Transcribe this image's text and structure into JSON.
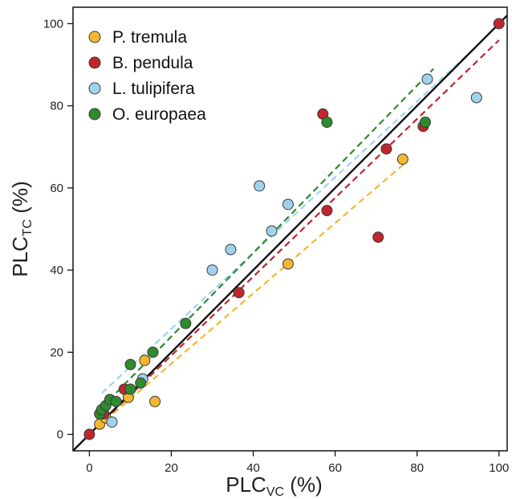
{
  "chart_data": {
    "type": "scatter",
    "title": "",
    "xlabel": {
      "main": "PLC",
      "sub": "VC",
      "unit": " (%)"
    },
    "ylabel": {
      "main": "PLC",
      "sub": "TC",
      "unit": " (%)"
    },
    "xlim": [
      -4,
      102
    ],
    "ylim": [
      -4,
      104
    ],
    "xticks": [
      0,
      20,
      40,
      60,
      80,
      100
    ],
    "yticks": [
      0,
      20,
      40,
      60,
      80,
      100
    ],
    "grid": false,
    "legend": "top-left",
    "identity_line": {
      "from": [
        -4,
        -4
      ],
      "to": [
        102,
        102
      ],
      "color": "#111111"
    },
    "series": [
      {
        "name": "P. tremula",
        "color": "#f5b731",
        "points": [
          [
            2.5,
            2.5
          ],
          [
            4,
            4
          ],
          [
            9.5,
            9
          ],
          [
            13.5,
            18
          ],
          [
            16,
            8
          ],
          [
            48.5,
            41.5
          ],
          [
            76.5,
            67
          ]
        ],
        "fit": {
          "from": [
            2,
            1.8
          ],
          "to": [
            77,
            66
          ]
        }
      },
      {
        "name": "B. pendula",
        "color": "#c0262d",
        "points": [
          [
            0,
            0
          ],
          [
            3.5,
            5
          ],
          [
            8.5,
            11
          ],
          [
            36.5,
            34.5
          ],
          [
            57,
            78
          ],
          [
            58,
            54.5
          ],
          [
            70.5,
            48
          ],
          [
            72.5,
            69.5
          ],
          [
            81.5,
            75
          ],
          [
            100,
            100
          ]
        ],
        "fit": {
          "from": [
            0,
            0
          ],
          "to": [
            100,
            96
          ]
        }
      },
      {
        "name": "L. tulipifera",
        "color": "#9fd3ec",
        "points": [
          [
            5.5,
            3
          ],
          [
            13,
            13.5
          ],
          [
            30,
            40
          ],
          [
            34.5,
            45
          ],
          [
            41.5,
            60.5
          ],
          [
            44.5,
            49.5
          ],
          [
            48.5,
            56
          ],
          [
            82.5,
            86.5
          ],
          [
            94.5,
            82
          ]
        ],
        "fit": {
          "from": [
            3,
            10
          ],
          "to": [
            94,
            94
          ]
        }
      },
      {
        "name": "O. europaea",
        "color": "#2e8b2e",
        "points": [
          [
            2.5,
            5
          ],
          [
            3,
            6
          ],
          [
            4,
            7
          ],
          [
            5,
            8.5
          ],
          [
            6.5,
            8
          ],
          [
            10,
            17
          ],
          [
            10,
            11
          ],
          [
            12.5,
            12.5
          ],
          [
            15.5,
            20
          ],
          [
            23.5,
            27
          ],
          [
            58,
            76
          ],
          [
            82,
            76
          ]
        ],
        "fit": {
          "from": [
            3,
            6.5
          ],
          "to": [
            84,
            89
          ]
        }
      }
    ]
  }
}
